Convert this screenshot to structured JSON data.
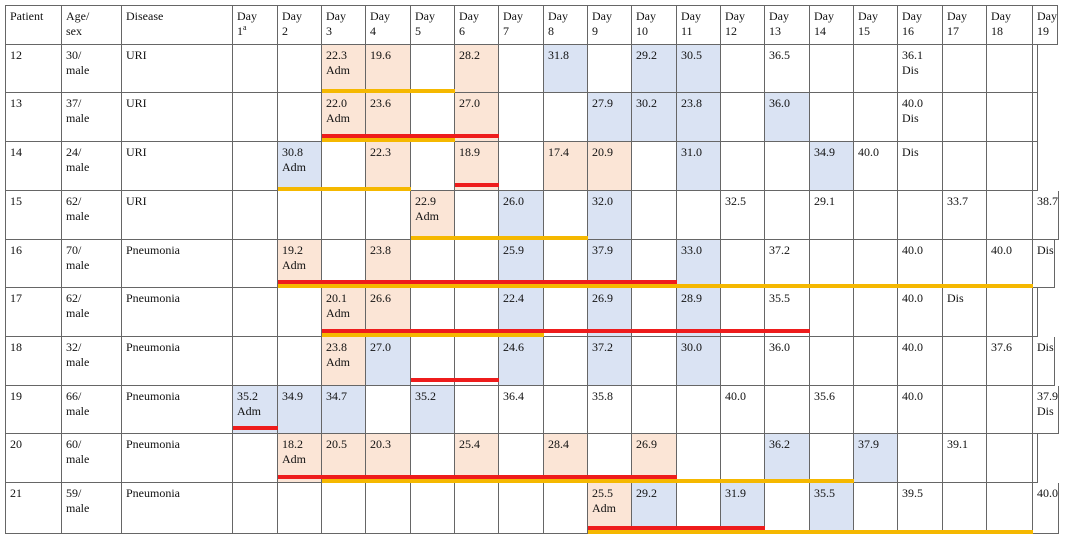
{
  "colors": {
    "pink": "#fbe5d6",
    "blue": "#dae3f3",
    "red": "#ee1c1c",
    "yellow": "#f5b800"
  },
  "header": {
    "patient": "Patient",
    "age_sex": [
      "Age/",
      "sex"
    ],
    "disease": "Disease",
    "days": [
      [
        "Day",
        "1",
        "a"
      ],
      [
        "Day",
        "2"
      ],
      [
        "Day",
        "3"
      ],
      [
        "Day",
        "4"
      ],
      [
        "Day",
        "5"
      ],
      [
        "Day",
        "6"
      ],
      [
        "Day",
        "7"
      ],
      [
        "Day",
        "8"
      ],
      [
        "Day",
        "9"
      ],
      [
        "Day",
        "10"
      ],
      [
        "Day",
        "11"
      ],
      [
        "Day",
        "12"
      ],
      [
        "Day",
        "13"
      ],
      [
        "Day",
        "14"
      ],
      [
        "Day",
        "15"
      ],
      [
        "Day",
        "16"
      ],
      [
        "Day",
        "17"
      ],
      [
        "Day",
        "18"
      ],
      [
        "Day",
        "19"
      ]
    ]
  },
  "rows": [
    {
      "patient": "12",
      "age": "30/",
      "sex": "male",
      "disease": "URI",
      "cells": [
        [],
        [],
        [
          "22.3",
          "Adm"
        ],
        [
          "19.6"
        ],
        [],
        [
          "28.2"
        ],
        [],
        [
          "31.8"
        ],
        [],
        [
          "29.2"
        ],
        [
          "30.5"
        ],
        [],
        [
          "36.5"
        ],
        [],
        [],
        [
          "36.1",
          "Dis"
        ],
        [],
        [],
        []
      ],
      "hl": {
        "2": "p",
        "3": "p",
        "5": "p",
        "7": "b",
        "9": "b",
        "10": "b"
      },
      "bars": [
        {
          "from": 2,
          "to": 4,
          "c": "y"
        }
      ]
    },
    {
      "patient": "13",
      "age": "37/",
      "sex": "male",
      "disease": "URI",
      "cells": [
        [],
        [],
        [
          "22.0",
          "Adm"
        ],
        [
          "23.6"
        ],
        [],
        [
          "27.0"
        ],
        [],
        [],
        [
          "27.9"
        ],
        [
          "30.2"
        ],
        [
          "23.8"
        ],
        [],
        [
          "36.0"
        ],
        [],
        [],
        [
          "40.0",
          "Dis"
        ],
        [],
        [],
        []
      ],
      "hl": {
        "2": "p",
        "3": "p",
        "5": "p",
        "8": "b",
        "9": "b",
        "10": "b",
        "12": "b"
      },
      "bars": [
        {
          "from": 2,
          "to": 5,
          "c": "r"
        },
        {
          "from": 2,
          "to": 4,
          "c": "y"
        }
      ]
    },
    {
      "patient": "14",
      "age": "24/",
      "sex": "male",
      "disease": "URI",
      "cells": [
        [],
        [
          "30.8",
          "Adm"
        ],
        [],
        [
          "22.3"
        ],
        [],
        [
          "18.9"
        ],
        [],
        [
          "17.4"
        ],
        [
          "20.9"
        ],
        [],
        [
          "31.0"
        ],
        [],
        [],
        [
          "34.9"
        ],
        [
          "40.0"
        ],
        [
          "Dis"
        ],
        [],
        [],
        []
      ],
      "hl": {
        "1": "b",
        "3": "p",
        "5": "p",
        "7": "p",
        "8": "p",
        "10": "b",
        "13": "b"
      },
      "bars": [
        {
          "from": 1,
          "to": 3,
          "c": "y"
        },
        {
          "from": 5,
          "to": 5,
          "c": "r"
        }
      ]
    },
    {
      "patient": "15",
      "age": "62/",
      "sex": "male",
      "disease": "URI",
      "cells": [
        [],
        [],
        [],
        [],
        [
          "22.9",
          "Adm"
        ],
        [],
        [
          "26.0"
        ],
        [],
        [
          "32.0"
        ],
        [],
        [],
        [
          "32.5"
        ],
        [],
        [
          "29.1"
        ],
        [],
        [],
        [
          "33.7"
        ],
        [],
        [
          "38.7"
        ]
      ],
      "hl": {
        "4": "p",
        "6": "b",
        "8": "b"
      },
      "bars": [
        {
          "from": 4,
          "to": 7,
          "c": "y"
        }
      ]
    },
    {
      "patient": "16",
      "age": "70/",
      "sex": "male",
      "disease": "Pneumonia",
      "cells": [
        [],
        [
          "19.2",
          "Adm"
        ],
        [],
        [
          "23.8"
        ],
        [],
        [],
        [
          "25.9"
        ],
        [],
        [
          "37.9"
        ],
        [],
        [
          "33.0"
        ],
        [],
        [
          "37.2"
        ],
        [],
        [],
        [
          "40.0"
        ],
        [],
        [
          "40.0"
        ],
        [
          "Dis"
        ]
      ],
      "hl": {
        "1": "p",
        "3": "p",
        "6": "b",
        "8": "b",
        "10": "b"
      },
      "bars": [
        {
          "from": 1,
          "to": 9,
          "c": "r"
        },
        {
          "from": 1,
          "to": 17,
          "c": "y"
        }
      ]
    },
    {
      "patient": "17",
      "age": "62/",
      "sex": "male",
      "disease": "Pneumonia",
      "cells": [
        [],
        [],
        [
          "20.1",
          "Adm"
        ],
        [
          "26.6"
        ],
        [],
        [],
        [
          "22.4"
        ],
        [],
        [
          "26.9"
        ],
        [],
        [
          "28.9"
        ],
        [],
        [
          "35.5"
        ],
        [],
        [],
        [
          "40.0"
        ],
        [
          "Dis"
        ],
        [],
        []
      ],
      "hl": {
        "2": "p",
        "3": "p",
        "6": "b",
        "8": "b",
        "10": "b"
      },
      "bars": [
        {
          "from": 2,
          "to": 12,
          "c": "r"
        },
        {
          "from": 2,
          "to": 6,
          "c": "y"
        }
      ]
    },
    {
      "patient": "18",
      "age": "32/",
      "sex": "male",
      "disease": "Pneumonia",
      "cells": [
        [],
        [],
        [
          "23.8",
          "Adm"
        ],
        [
          "27.0"
        ],
        [],
        [],
        [
          "24.6"
        ],
        [],
        [
          "37.2"
        ],
        [],
        [
          "30.0"
        ],
        [],
        [
          "36.0"
        ],
        [],
        [],
        [
          "40.0"
        ],
        [],
        [
          "37.6"
        ],
        [
          "Dis"
        ]
      ],
      "hl": {
        "2": "p",
        "3": "b",
        "6": "b",
        "8": "b",
        "10": "b"
      },
      "bars": [
        {
          "from": 4,
          "to": 5,
          "c": "r"
        }
      ]
    },
    {
      "patient": "19",
      "age": "66/",
      "sex": "male",
      "disease": "Pneumonia",
      "cells": [
        [
          "35.2",
          "Adm"
        ],
        [
          "34.9"
        ],
        [
          "34.7"
        ],
        [],
        [
          "35.2"
        ],
        [],
        [
          "36.4"
        ],
        [],
        [
          "35.8"
        ],
        [],
        [],
        [
          "40.0"
        ],
        [],
        [
          "35.6"
        ],
        [],
        [
          "40.0"
        ],
        [],
        [],
        [
          "37.9",
          "Dis"
        ]
      ],
      "hl": {
        "0": "b",
        "1": "b",
        "2": "b",
        "4": "b"
      },
      "bars": [
        {
          "from": 0,
          "to": 0,
          "c": "r"
        }
      ]
    },
    {
      "patient": "20",
      "age": "60/",
      "sex": "male",
      "disease": "Pneumonia",
      "cells": [
        [],
        [
          "18.2",
          "Adm"
        ],
        [
          "20.5"
        ],
        [
          "20.3"
        ],
        [],
        [
          "25.4"
        ],
        [],
        [
          "28.4"
        ],
        [],
        [
          "26.9"
        ],
        [],
        [],
        [
          "36.2"
        ],
        [],
        [
          "37.9"
        ],
        [],
        [
          "39.1"
        ],
        [],
        []
      ],
      "hl": {
        "1": "p",
        "2": "p",
        "3": "p",
        "5": "p",
        "7": "p",
        "9": "p",
        "12": "b",
        "14": "b"
      },
      "bars": [
        {
          "from": 1,
          "to": 9,
          "c": "r"
        },
        {
          "from": 2,
          "to": 13,
          "c": "y"
        }
      ]
    },
    {
      "patient": "21",
      "age": "59/",
      "sex": "male",
      "disease": "Pneumonia",
      "cells": [
        [],
        [],
        [],
        [],
        [],
        [],
        [],
        [],
        [
          "25.5",
          "Adm"
        ],
        [
          "29.2"
        ],
        [],
        [
          "31.9"
        ],
        [],
        [
          "35.5"
        ],
        [],
        [
          "39.5"
        ],
        [],
        [],
        [
          "40.0"
        ]
      ],
      "hl": {
        "8": "p",
        "9": "b",
        "11": "b",
        "13": "b"
      },
      "bars": [
        {
          "from": 8,
          "to": 11,
          "c": "r"
        },
        {
          "from": 8,
          "to": 17,
          "c": "y"
        }
      ]
    }
  ]
}
